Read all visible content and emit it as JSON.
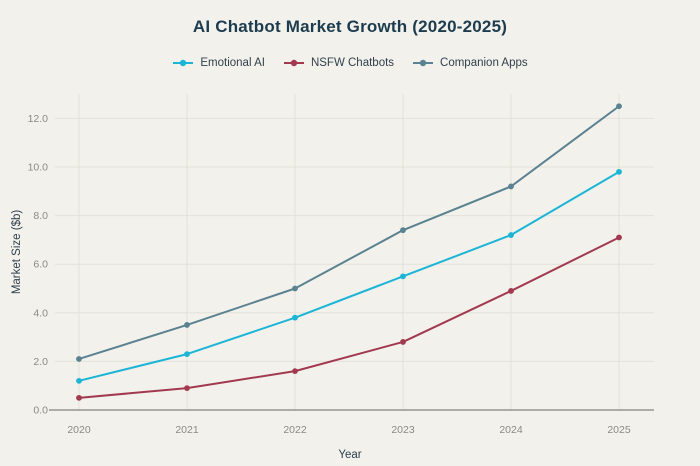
{
  "page": {
    "background_color": "#f2f1ec"
  },
  "chart_data": {
    "type": "line",
    "title": "AI Chatbot Market Growth (2020-2025)",
    "xlabel": "Year",
    "ylabel": "Market Size ($b)",
    "categories": [
      "2020",
      "2021",
      "2022",
      "2023",
      "2024",
      "2025"
    ],
    "series": [
      {
        "name": "Emotional AI",
        "color": "#1cb5d6",
        "values": [
          1.2,
          2.3,
          3.8,
          5.5,
          7.2,
          9.8
        ]
      },
      {
        "name": "NSFW Chatbots",
        "color": "#a23a4f",
        "values": [
          0.5,
          0.9,
          1.6,
          2.8,
          4.9,
          7.1
        ]
      },
      {
        "name": "Companion Apps",
        "color": "#5b8290",
        "values": [
          2.1,
          3.5,
          5.0,
          7.4,
          9.2,
          12.5
        ]
      }
    ],
    "ylim": [
      0,
      13
    ],
    "yticks": [
      0,
      2,
      4,
      6,
      8,
      10,
      12
    ],
    "ytick_labels": [
      "0.0",
      "2.0",
      "4.0",
      "6.0",
      "8.0",
      "10.0",
      "12.0"
    ],
    "grid": true,
    "legend_position": "top",
    "marker_style": "circle",
    "colors": {
      "title_text": "#1d3c4e",
      "legend_text": "#32414c",
      "axis_title_text": "#2e3f4c",
      "tick_label_text": "#8b8a82",
      "grid_line": "#e3e2da",
      "axis_line": "#a3a29b"
    }
  }
}
